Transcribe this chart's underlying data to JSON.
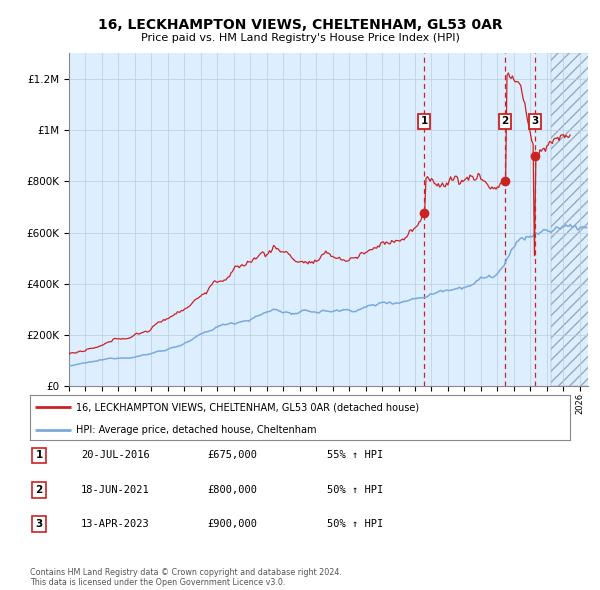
{
  "title": "16, LECKHAMPTON VIEWS, CHELTENHAM, GL53 0AR",
  "subtitle": "Price paid vs. HM Land Registry's House Price Index (HPI)",
  "hpi_label": "HPI: Average price, detached house, Cheltenham",
  "property_label": "16, LECKHAMPTON VIEWS, CHELTENHAM, GL53 0AR (detached house)",
  "footer": "Contains HM Land Registry data © Crown copyright and database right 2024.\nThis data is licensed under the Open Government Licence v3.0.",
  "ylim": [
    0,
    1300000
  ],
  "xlim_start": 1995.0,
  "xlim_end": 2026.5,
  "sale_dates": [
    2016.554,
    2021.463,
    2023.283
  ],
  "sale_prices": [
    675000,
    800000,
    900000
  ],
  "sale_labels": [
    "1",
    "2",
    "3"
  ],
  "sale_info": [
    [
      "1",
      "20-JUL-2016",
      "£675,000",
      "55% ↑ HPI"
    ],
    [
      "2",
      "18-JUN-2021",
      "£800,000",
      "50% ↑ HPI"
    ],
    [
      "3",
      "13-APR-2023",
      "£900,000",
      "50% ↑ HPI"
    ]
  ],
  "future_start": 2024.25,
  "hpi_color": "#7aaadd",
  "property_color": "#cc2222",
  "bg_color": "#ddeeff",
  "grid_color": "#bbccdd",
  "dashed_line_color": "#cc2222",
  "ytick_labels": [
    "£0",
    "£200K",
    "£400K",
    "£600K",
    "£800K",
    "£1M",
    "£1.2M"
  ],
  "ytick_values": [
    0,
    200000,
    400000,
    600000,
    800000,
    1000000,
    1200000
  ]
}
